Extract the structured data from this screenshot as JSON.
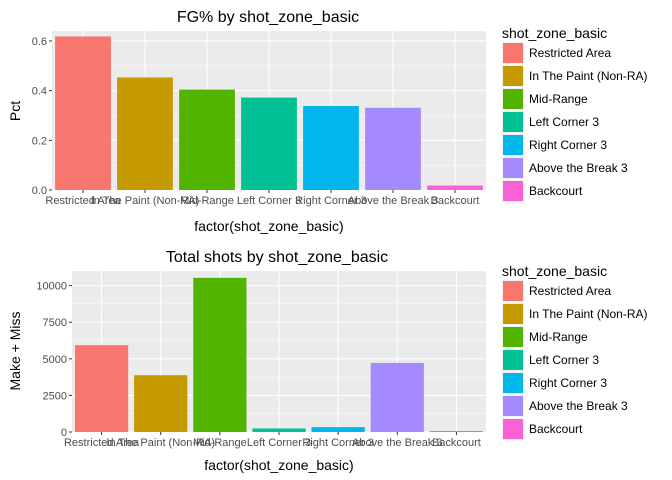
{
  "chart_data": [
    {
      "type": "bar",
      "title": "FG% by shot_zone_basic",
      "xlabel": "factor(shot_zone_basic)",
      "ylabel": "Pct",
      "categories": [
        "Restricted Area",
        "In The Paint (Non-RA)",
        "Mid-Range",
        "Left Corner 3",
        "Right Corner 3",
        "Above the Break 3",
        "Backcourt"
      ],
      "values": [
        0.618,
        0.453,
        0.404,
        0.372,
        0.338,
        0.331,
        0.018
      ],
      "ylim": [
        0,
        0.64
      ],
      "yticks": [
        0.0,
        0.2,
        0.4,
        0.6
      ],
      "ytick_labels": [
        "0.0",
        "0.2",
        "0.4",
        "0.6"
      ],
      "legend_title": "shot_zone_basic",
      "legend_position": "right",
      "grid": true
    },
    {
      "type": "bar",
      "title": "Total shots by shot_zone_basic",
      "xlabel": "factor(shot_zone_basic)",
      "ylabel": "Make + Miss",
      "categories": [
        "Restricted Area",
        "In The Paint (Non-RA)",
        "Mid-Range",
        "Left Corner 3",
        "Right Corner 3",
        "Above the Break 3",
        "Backcourt"
      ],
      "values": [
        5932,
        3880,
        10532,
        240,
        333,
        4720,
        71
      ],
      "ylim": [
        0,
        11000
      ],
      "yticks": [
        0,
        2500,
        5000,
        7500,
        10000
      ],
      "ytick_labels": [
        "0",
        "2500",
        "5000",
        "7500",
        "10000"
      ],
      "legend_title": "shot_zone_basic",
      "legend_position": "right",
      "grid": true
    }
  ],
  "colors": [
    "#F8766D",
    "#C49A00",
    "#53B400",
    "#00C094",
    "#00B6EB",
    "#A58AFF",
    "#FB61D7"
  ],
  "panel_background": "#EBEBEB",
  "grid_color": "#FFFFFF"
}
